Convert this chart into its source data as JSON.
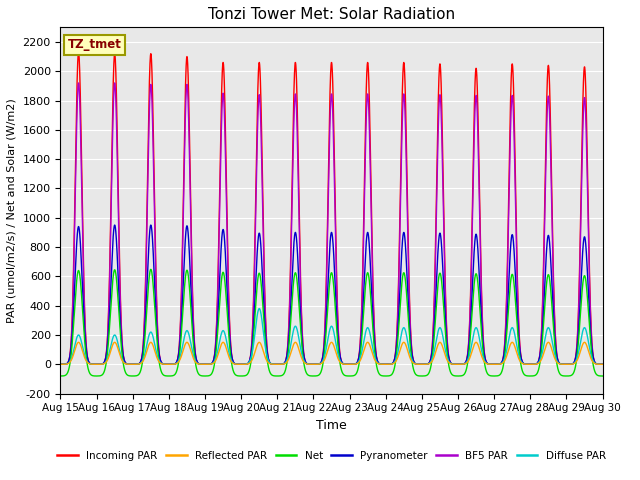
{
  "title": "Tonzi Tower Met: Solar Radiation",
  "ylabel": "PAR (umol/m2/s) / Net and Solar (W/m2)",
  "xlabel": "Time",
  "ylim": [
    -200,
    2300
  ],
  "yticks": [
    -200,
    0,
    200,
    400,
    600,
    800,
    1000,
    1200,
    1400,
    1600,
    1800,
    2000,
    2200
  ],
  "n_days": 15,
  "start_day": 15,
  "points_per_day": 480,
  "background_color": "#e8e8e8",
  "legend_label": "TZ_tmet",
  "fig_width": 6.4,
  "fig_height": 4.8,
  "series": {
    "incoming_par": {
      "color": "#ff0000",
      "label": "Incoming PAR"
    },
    "reflected_par": {
      "color": "#ffa500",
      "label": "Reflected PAR"
    },
    "net": {
      "color": "#00dd00",
      "label": "Net"
    },
    "pyranometer": {
      "color": "#0000cc",
      "label": "Pyranometer"
    },
    "bf5_par": {
      "color": "#aa00cc",
      "label": "BF5 PAR"
    },
    "diffuse_par": {
      "color": "#00cccc",
      "label": "Diffuse PAR"
    }
  }
}
